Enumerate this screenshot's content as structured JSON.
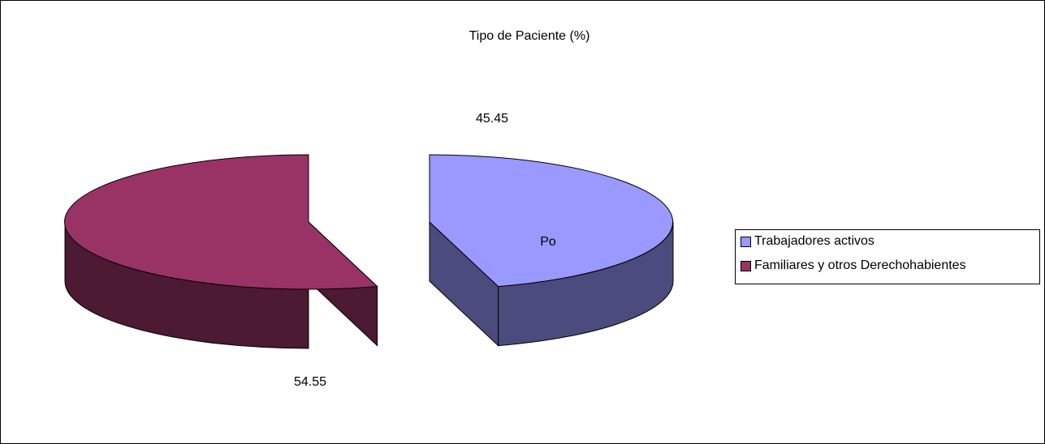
{
  "chart_data": {
    "type": "pie",
    "title": "Tipo de Paciente (%)",
    "categories": [
      "Trabajadores activos",
      "Familiares y otros Derechohabientes"
    ],
    "values": [
      45.45,
      54.55
    ],
    "data_labels": [
      "45.45",
      "54.55"
    ],
    "slice_text": "Po",
    "legend_position": "right",
    "colors": {
      "series1_top": "#9999FF",
      "series1_side": "#4B4B7D",
      "series2_top": "#993366",
      "series2_side": "#4C1A32"
    }
  }
}
